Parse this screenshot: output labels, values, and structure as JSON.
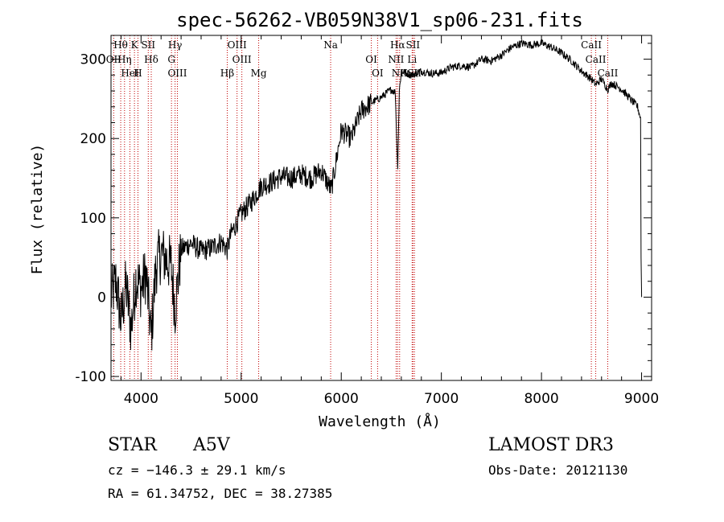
{
  "chart_data": {
    "type": "line",
    "title": "spec-56262-VB059N38V1_sp06-231.fits",
    "xlabel": "Wavelength (Å)",
    "ylabel": "Flux (relative)",
    "xlim": [
      3700,
      9100
    ],
    "ylim": [
      -105,
      330
    ],
    "x_ticks": [
      4000,
      5000,
      6000,
      7000,
      8000,
      9000
    ],
    "y_ticks": [
      -100,
      0,
      100,
      200,
      300
    ],
    "grid": false,
    "series": [
      {
        "name": "Flux",
        "x": [
          3700,
          3750,
          3800,
          3850,
          3900,
          3950,
          4000,
          4050,
          4100,
          4150,
          4200,
          4250,
          4300,
          4340,
          4400,
          4500,
          4600,
          4700,
          4800,
          4861,
          4900,
          5000,
          5100,
          5200,
          5300,
          5400,
          5500,
          5600,
          5700,
          5800,
          5900,
          6000,
          6100,
          6200,
          6300,
          6400,
          6500,
          6540,
          6563,
          6580,
          6600,
          6700,
          6800,
          6900,
          7000,
          7100,
          7200,
          7300,
          7400,
          7500,
          7600,
          7700,
          7800,
          7900,
          8000,
          8100,
          8200,
          8300,
          8400,
          8498,
          8542,
          8600,
          8662,
          8700,
          8800,
          8900,
          8960,
          8990,
          8995,
          9000
        ],
        "y": [
          0,
          20,
          -30,
          15,
          -40,
          25,
          10,
          30,
          -50,
          40,
          55,
          48,
          40,
          -15,
          60,
          68,
          58,
          62,
          70,
          60,
          80,
          105,
          120,
          140,
          145,
          152,
          150,
          155,
          150,
          160,
          135,
          210,
          200,
          235,
          245,
          252,
          262,
          258,
          160,
          260,
          285,
          280,
          285,
          282,
          283,
          290,
          292,
          290,
          300,
          298,
          305,
          315,
          320,
          318,
          320,
          315,
          308,
          298,
          285,
          275,
          268,
          275,
          262,
          270,
          262,
          248,
          240,
          225,
          50,
          0
        ]
      }
    ],
    "line_markers": [
      {
        "label": "Hθ",
        "wavelength": 3797
      },
      {
        "label": "OII",
        "wavelength": 3727
      },
      {
        "label": "HeI",
        "wavelength": 3889
      },
      {
        "label": "K",
        "wavelength": 3934
      },
      {
        "label": "Hη",
        "wavelength": 3835
      },
      {
        "label": "H",
        "wavelength": 3969
      },
      {
        "label": "SII",
        "wavelength": 4072
      },
      {
        "label": "Hδ",
        "wavelength": 4102
      },
      {
        "label": "OIII",
        "wavelength": 4363
      },
      {
        "label": "Hγ",
        "wavelength": 4340
      },
      {
        "label": "G",
        "wavelength": 4304
      },
      {
        "label": "Hβ",
        "wavelength": 4861
      },
      {
        "label": "OIII",
        "wavelength": 4959
      },
      {
        "label": "OIII",
        "wavelength": 5007
      },
      {
        "label": "Mg",
        "wavelength": 5175
      },
      {
        "label": "Na",
        "wavelength": 5894
      },
      {
        "label": "OI",
        "wavelength": 6300
      },
      {
        "label": "OI",
        "wavelength": 6363
      },
      {
        "label": "Hα",
        "wavelength": 6563
      },
      {
        "label": "NII",
        "wavelength": 6548
      },
      {
        "label": "NII",
        "wavelength": 6583
      },
      {
        "label": "SII",
        "wavelength": 6716
      },
      {
        "label": "Li",
        "wavelength": 6708
      },
      {
        "label": "SII",
        "wavelength": 6731
      },
      {
        "label": "CaII",
        "wavelength": 8498
      },
      {
        "label": "CaII",
        "wavelength": 8542
      },
      {
        "label": "CaII",
        "wavelength": 8662
      }
    ]
  },
  "info": {
    "class": "STAR",
    "subclass": "A5V",
    "survey": "LAMOST DR3",
    "cz": "cz = −146.3 ± 29.1 km/s",
    "obs_date": "Obs-Date: 20121130",
    "coords": "RA =  61.34752, DEC =  38.27385"
  },
  "colors": {
    "spectrum": "#000000",
    "marker": "#c00000",
    "axes": "#000000"
  }
}
